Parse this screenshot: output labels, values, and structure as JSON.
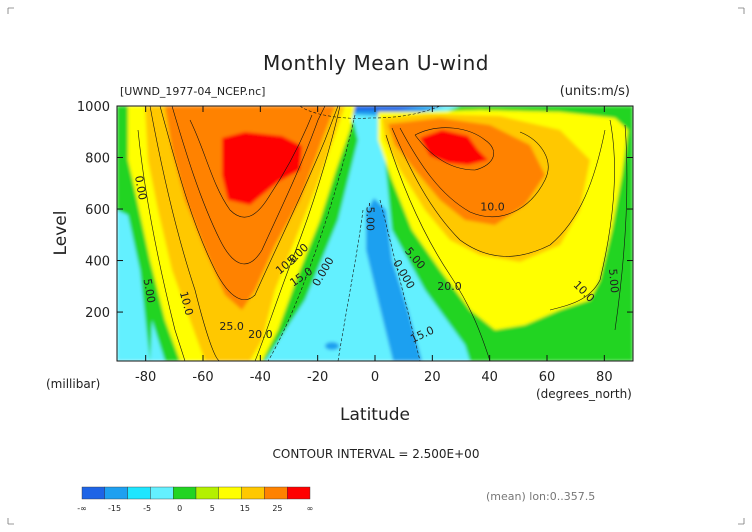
{
  "chart_data": {
    "type": "heatmap",
    "title": "Monthly Mean U-wind",
    "file_label": "[UWND_1977-04_NCEP.nc]",
    "units_label": "(units:m/s)",
    "xlabel": "Latitude",
    "x_unit_label": "(degrees_north)",
    "ylabel": "Level",
    "y_unit_label": "(millibar)",
    "x_ticks": [
      "-80",
      "-60",
      "-40",
      "-20",
      "0",
      "20",
      "40",
      "60",
      "80"
    ],
    "x_tick_values": [
      -80,
      -60,
      -40,
      -20,
      0,
      20,
      40,
      60,
      80
    ],
    "y_ticks": [
      "200",
      "400",
      "600",
      "800",
      "1000"
    ],
    "y_tick_values": [
      200,
      400,
      600,
      800,
      1000
    ],
    "xlim": [
      -90,
      90
    ],
    "ylim": [
      1000,
      10
    ],
    "contour_interval_text": "CONTOUR INTERVAL = 2.500E+00",
    "mean_text": "(mean) lon:0..357.5",
    "contour_labels": [
      {
        "text": "25.0",
        "lat": -50,
        "lev": 130,
        "rotate": 0
      },
      {
        "text": "20.0",
        "lat": -40,
        "lev": 100,
        "rotate": 0
      },
      {
        "text": "15.0",
        "lat": -25,
        "lev": 325,
        "rotate": -35
      },
      {
        "text": "10.0",
        "lat": -67,
        "lev": 230,
        "rotate": 75
      },
      {
        "text": "10.0",
        "lat": -30,
        "lev": 375,
        "rotate": -40
      },
      {
        "text": "5.00",
        "lat": -80,
        "lev": 280,
        "rotate": 80
      },
      {
        "text": "5.00",
        "lat": -26,
        "lev": 415,
        "rotate": -45
      },
      {
        "text": "0.000",
        "lat": -17,
        "lev": 350,
        "rotate": -60
      },
      {
        "text": "0.00",
        "lat": -83,
        "lev": 680,
        "rotate": 80
      },
      {
        "text": "-5.00",
        "lat": -3,
        "lev": 570,
        "rotate": 90
      },
      {
        "text": "15.0",
        "lat": 17,
        "lev": 100,
        "rotate": -25
      },
      {
        "text": "20.0",
        "lat": 26,
        "lev": 285,
        "rotate": 0
      },
      {
        "text": "10.0",
        "lat": 41,
        "lev": 595,
        "rotate": 0
      },
      {
        "text": "10.0",
        "lat": 72,
        "lev": 270,
        "rotate": 45
      },
      {
        "text": "5.00",
        "lat": 82,
        "lev": 320,
        "rotate": 85
      },
      {
        "text": "0.000",
        "lat": 9,
        "lev": 340,
        "rotate": 60
      },
      {
        "text": "5.00",
        "lat": 13,
        "lev": 400,
        "rotate": 50
      }
    ],
    "colorbar": {
      "colors": [
        "#1e64e6",
        "#1ea0f0",
        "#1ee6ff",
        "#64f0ff",
        "#22d422",
        "#b4f000",
        "#ffff00",
        "#ffc800",
        "#ff8200",
        "#ff0000"
      ],
      "labels": [
        "-∞",
        "-15",
        "-5",
        "0",
        "5",
        "15",
        "25",
        "∞"
      ]
    }
  }
}
